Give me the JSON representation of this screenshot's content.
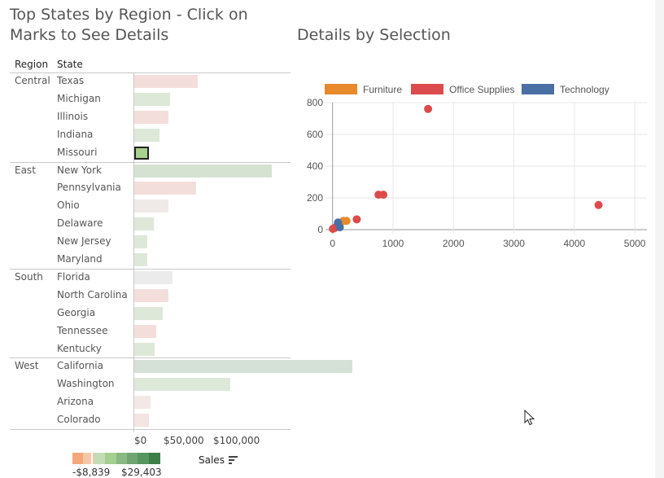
{
  "left_title": "Top States by Region - Click on Marks to See Details",
  "left_title_lines": [
    "Top States by Region - Click on",
    "Marks to See Details"
  ],
  "right_title": "Details by Selection",
  "headers": {
    "region": "Region",
    "state": "State"
  },
  "groups": [
    {
      "region": "Central",
      "states": [
        {
          "name": "Texas",
          "sales": 43000,
          "color": "#f4dedc"
        },
        {
          "name": "Michigan",
          "sales": 24000,
          "color": "#dde8d9"
        },
        {
          "name": "Illinois",
          "sales": 23000,
          "color": "#f4dedc"
        },
        {
          "name": "Indiana",
          "sales": 17000,
          "color": "#dde8d9"
        },
        {
          "name": "Missouri",
          "sales": 10000,
          "color": "#a8d08e",
          "selected": true
        }
      ]
    },
    {
      "region": "East",
      "states": [
        {
          "name": "New York",
          "sales": 93000,
          "color": "#d5e2d2"
        },
        {
          "name": "Pennsylvania",
          "sales": 42000,
          "color": "#f4dedc"
        },
        {
          "name": "Ohio",
          "sales": 23000,
          "color": "#efe9e8"
        },
        {
          "name": "Delaware",
          "sales": 13000,
          "color": "#dde8d9"
        },
        {
          "name": "New Jersey",
          "sales": 9000,
          "color": "#dde8d9"
        },
        {
          "name": "Maryland",
          "sales": 9000,
          "color": "#dde8d9"
        }
      ]
    },
    {
      "region": "South",
      "states": [
        {
          "name": "Florida",
          "sales": 26000,
          "color": "#ebebeb"
        },
        {
          "name": "North Carolina",
          "sales": 23000,
          "color": "#f4dedc"
        },
        {
          "name": "Georgia",
          "sales": 19000,
          "color": "#dde8d9"
        },
        {
          "name": "Tennessee",
          "sales": 15000,
          "color": "#f4dedc"
        },
        {
          "name": "Kentucky",
          "sales": 14000,
          "color": "#dde8d9"
        }
      ]
    },
    {
      "region": "West",
      "states": [
        {
          "name": "California",
          "sales": 147000,
          "color": "#d5e0d6"
        },
        {
          "name": "Washington",
          "sales": 65000,
          "color": "#dde8d9"
        },
        {
          "name": "Arizona",
          "sales": 11000,
          "color": "#f4e8e6"
        },
        {
          "name": "Colorado",
          "sales": 10000,
          "color": "#f4e4e2"
        }
      ]
    }
  ],
  "x_axis_ticks": [
    "$0",
    "$50,000",
    "$100,000"
  ],
  "x_axis_values": [
    0,
    50000,
    100000
  ],
  "color_legend": {
    "min_label": "-$8,839",
    "max_label": "$29,403",
    "colors": [
      "#f3a77a",
      "#f6c7a6",
      "#c3dcb5",
      "#a4cf90",
      "#8ab882",
      "#6fa572",
      "#56955e",
      "#3e7f48"
    ]
  },
  "sales_label": "Sales",
  "chart_data": {
    "type": "scatter",
    "title": "Details by Selection",
    "xlabel": "",
    "ylabel": "",
    "xlim": [
      -50,
      5200
    ],
    "ylim": [
      0,
      800
    ],
    "x_ticks": [
      0,
      1000,
      2000,
      3000,
      4000,
      5000
    ],
    "y_ticks": [
      0,
      200,
      400,
      600,
      800
    ],
    "grid": true,
    "legend_position": "top",
    "series": [
      {
        "name": "Furniture",
        "color": "#e8892b",
        "points": [
          [
            20,
            8
          ],
          [
            80,
            25
          ],
          [
            120,
            40
          ],
          [
            180,
            55
          ],
          [
            230,
            55
          ]
        ]
      },
      {
        "name": "Office Supplies",
        "color": "#dc4b4b",
        "points": [
          [
            5,
            5
          ],
          [
            40,
            12
          ],
          [
            70,
            20
          ],
          [
            400,
            65
          ],
          [
            760,
            220
          ],
          [
            840,
            220
          ],
          [
            1580,
            760
          ],
          [
            4400,
            155
          ]
        ]
      },
      {
        "name": "Technology",
        "color": "#4a6fa5",
        "points": [
          [
            90,
            45
          ],
          [
            120,
            15
          ]
        ]
      }
    ]
  }
}
